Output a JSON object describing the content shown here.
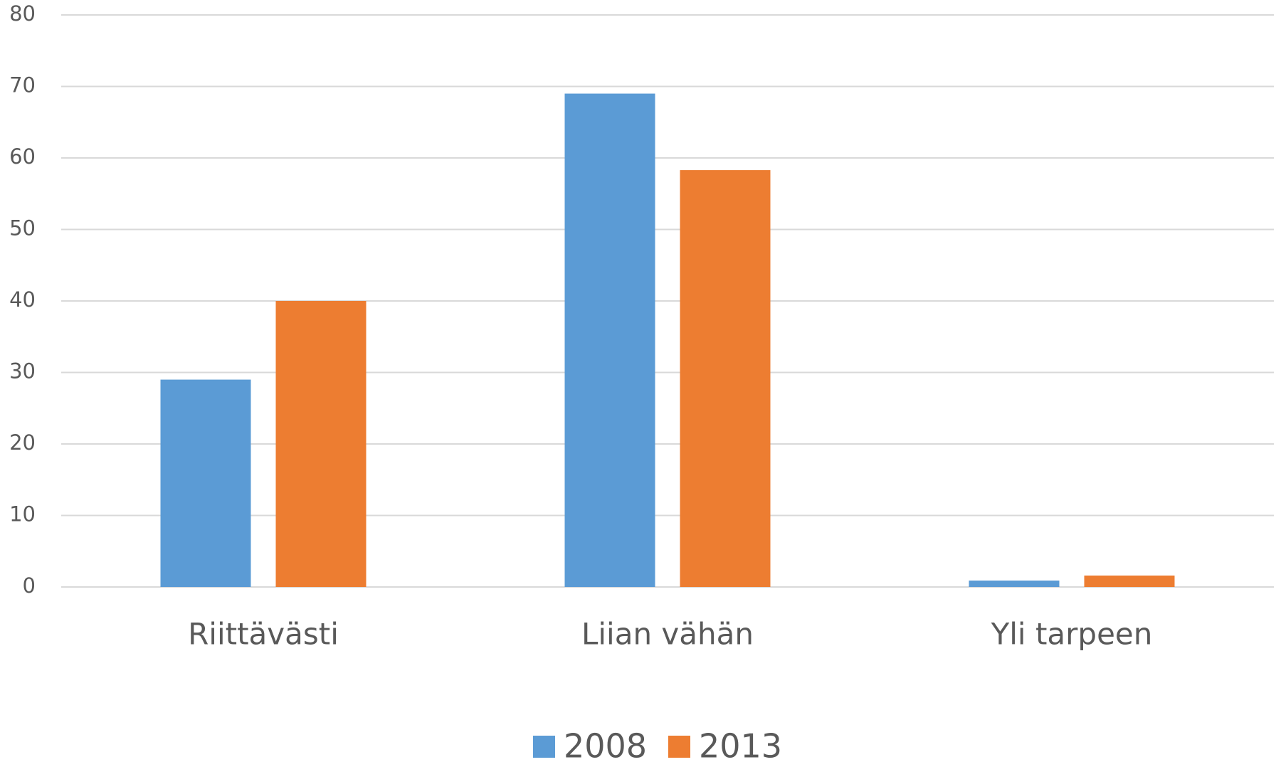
{
  "chart_data": {
    "type": "bar",
    "categories": [
      "Riittävästi",
      "Liian vähän",
      "Yli tarpeen"
    ],
    "series": [
      {
        "name": "2008",
        "color": "#5b9bd5",
        "values": [
          29,
          69,
          0.9
        ]
      },
      {
        "name": "2013",
        "color": "#ed7d31",
        "values": [
          40,
          58.3,
          1.6
        ]
      }
    ],
    "ylim": [
      0,
      80
    ],
    "yticks": [
      0,
      10,
      20,
      30,
      40,
      50,
      60,
      70,
      80
    ],
    "grid": true,
    "legend": "bottom"
  }
}
